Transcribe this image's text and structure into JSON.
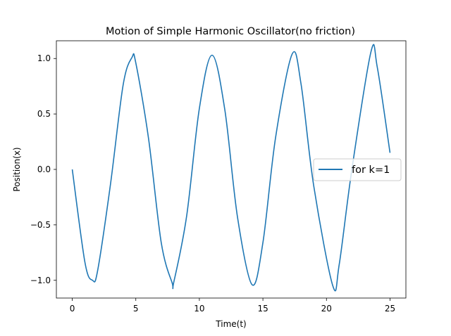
{
  "chart_data": {
    "type": "line",
    "title": "Motion of Simple Harmonic Oscillator(no friction)",
    "xlabel": "Time(t)",
    "ylabel": "Position(x)",
    "xlim": [
      -1.25,
      26.25
    ],
    "ylim": [
      -1.16,
      1.16
    ],
    "xticks": [
      0,
      5,
      10,
      15,
      20,
      25
    ],
    "xtick_labels": [
      "0",
      "5",
      "10",
      "15",
      "20",
      "25"
    ],
    "yticks": [
      -1.0,
      -0.5,
      0.0,
      0.5,
      1.0
    ],
    "ytick_labels": [
      "−1.0",
      "−0.5",
      "0.0",
      "0.5",
      "1.0"
    ],
    "grid": false,
    "legend_position": "center-right",
    "series": [
      {
        "name": "for k=1",
        "color": "#1f77b4",
        "x": [
          0.0,
          1.0,
          1.6,
          2.0,
          3.0,
          4.0,
          4.7,
          5.0,
          6.0,
          7.0,
          7.85,
          8.0,
          9.0,
          10.0,
          11.0,
          12.0,
          13.0,
          14.15,
          15.0,
          16.0,
          17.3,
          18.0,
          19.0,
          20.5,
          21.0,
          22.0,
          23.5,
          24.0,
          25.0
        ],
        "y": [
          0.0,
          -0.84,
          -1.0,
          -0.91,
          -0.14,
          0.76,
          1.01,
          0.96,
          0.28,
          -0.66,
          -1.02,
          -1.01,
          -0.42,
          0.55,
          1.03,
          0.54,
          -0.43,
          -1.04,
          -0.66,
          0.29,
          1.04,
          0.77,
          -0.15,
          -1.05,
          -0.86,
          0.0,
          1.06,
          0.92,
          0.15
        ]
      }
    ]
  }
}
